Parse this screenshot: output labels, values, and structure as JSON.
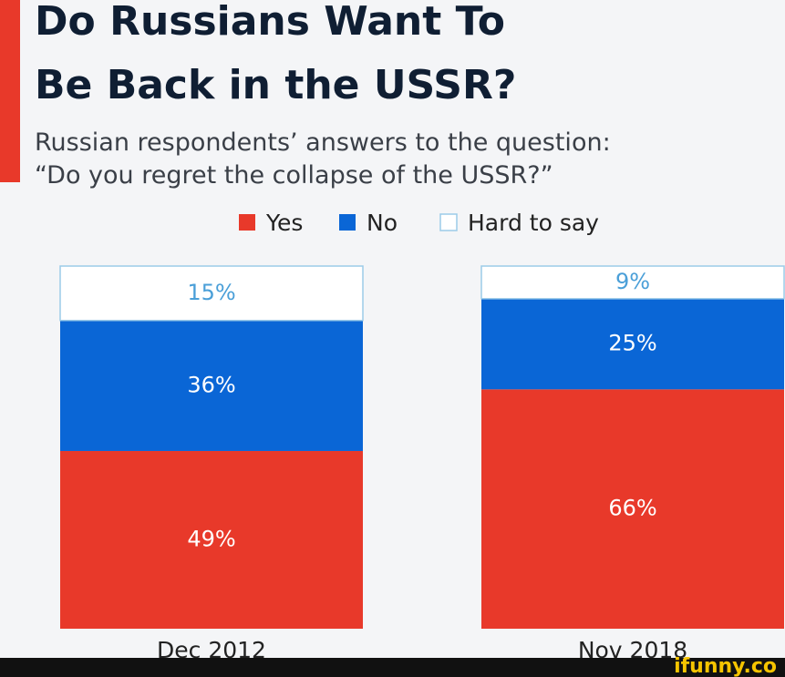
{
  "chart_data": {
    "type": "stacked_bar",
    "title": [
      "Do Russians Want To",
      "Be Back in the USSR?"
    ],
    "subtitle": [
      "Russian respondents’ answers to the question:",
      "“Do you regret the collapse of the USSR?”"
    ],
    "categories": [
      "Dec 2012",
      "Nov 2018"
    ],
    "series": [
      {
        "name": "Yes",
        "color": "#e8392a",
        "label_color": "#ffffff",
        "values": [
          49,
          66
        ],
        "value_labels": [
          "49%",
          "66%"
        ]
      },
      {
        "name": "No",
        "color": "#0a66d6",
        "label_color": "#ffffff",
        "values": [
          36,
          25
        ],
        "value_labels": [
          "36%",
          "25%"
        ]
      },
      {
        "name": "Hard to say",
        "color": "#ffffff",
        "border_color": "#9ccbe8",
        "label_color": "#4a9fd8",
        "values": [
          15,
          9
        ],
        "value_labels": [
          "15%",
          "9%"
        ]
      }
    ],
    "watermark": "ifunny.co"
  }
}
